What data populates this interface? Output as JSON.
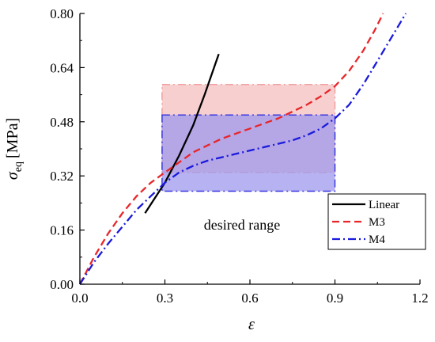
{
  "chart_data": {
    "type": "line",
    "xlabel": "ε",
    "ylabel_symbol": "σ",
    "ylabel_subscript": "eq",
    "ylabel_unit": "[MPa]",
    "xlim": [
      0.0,
      1.2
    ],
    "ylim": [
      0.0,
      0.8
    ],
    "x_ticks": [
      "0.0",
      "0.3",
      "0.6",
      "0.9",
      "1.2"
    ],
    "y_ticks": [
      "0.00",
      "0.16",
      "0.32",
      "0.48",
      "0.64",
      "0.80"
    ],
    "annotation": "desired range",
    "legend_position": "bottom-right",
    "regions": [
      {
        "x": [
          0.29,
          0.9
        ],
        "y": [
          0.33,
          0.59
        ],
        "fill": "#f6c7c7",
        "stroke": "#f2a0a0"
      },
      {
        "x": [
          0.29,
          0.9
        ],
        "y": [
          0.275,
          0.5
        ],
        "fill": "#9f98ee",
        "stroke": "#3a3ae0"
      }
    ],
    "series": [
      {
        "name": "Linear",
        "color": "#000000",
        "dash": "solid",
        "x": [
          0.23,
          0.3,
          0.35,
          0.4,
          0.44,
          0.49
        ],
        "y": [
          0.21,
          0.3,
          0.38,
          0.47,
          0.56,
          0.68
        ]
      },
      {
        "name": "M3",
        "color": "#e8262a",
        "dash": "dash",
        "x": [
          0.0,
          0.05,
          0.1,
          0.15,
          0.2,
          0.25,
          0.3,
          0.35,
          0.4,
          0.45,
          0.5,
          0.55,
          0.6,
          0.65,
          0.7,
          0.75,
          0.8,
          0.85,
          0.9,
          0.95,
          1.0,
          1.04,
          1.07
        ],
        "y": [
          0.0,
          0.08,
          0.15,
          0.21,
          0.26,
          0.3,
          0.33,
          0.36,
          0.39,
          0.41,
          0.43,
          0.445,
          0.46,
          0.475,
          0.49,
          0.51,
          0.53,
          0.555,
          0.585,
          0.63,
          0.69,
          0.75,
          0.8
        ]
      },
      {
        "name": "M4",
        "color": "#1a1adc",
        "dash": "dashdot",
        "x": [
          0.0,
          0.05,
          0.1,
          0.15,
          0.2,
          0.25,
          0.3,
          0.35,
          0.4,
          0.45,
          0.5,
          0.55,
          0.6,
          0.65,
          0.7,
          0.75,
          0.8,
          0.85,
          0.9,
          0.95,
          1.0,
          1.05,
          1.1,
          1.15
        ],
        "y": [
          0.0,
          0.065,
          0.12,
          0.17,
          0.22,
          0.26,
          0.3,
          0.33,
          0.35,
          0.365,
          0.375,
          0.385,
          0.395,
          0.405,
          0.415,
          0.425,
          0.44,
          0.46,
          0.49,
          0.53,
          0.59,
          0.66,
          0.73,
          0.8
        ]
      }
    ]
  }
}
